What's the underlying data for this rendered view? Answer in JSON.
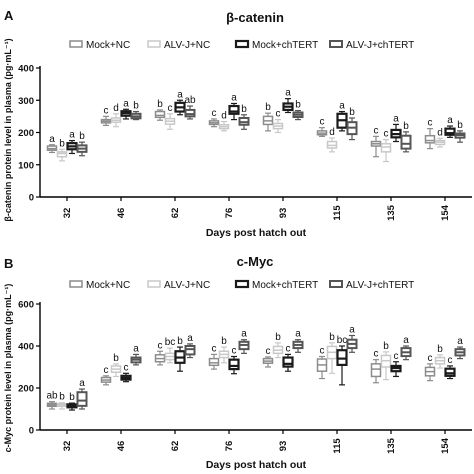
{
  "chart_data": [
    {
      "panel_label": "A",
      "type": "box",
      "title": "β-catenin",
      "xlabel": "Days post hatch out",
      "ylabel": "β-catenin protein level in plasma (pg·mL⁻¹)",
      "ylim": [
        0,
        400
      ],
      "yticks": [
        0,
        100,
        200,
        300,
        400
      ],
      "categories": [
        "32",
        "46",
        "62",
        "76",
        "93",
        "115",
        "135",
        "154"
      ],
      "legend": [
        "Mock+NC",
        "ALV-J+NC",
        "Mock+chTERT",
        "ALV-J+chTERT"
      ],
      "series": [
        {
          "name": "Mock+NC",
          "color": "#8c8c8c",
          "stroke_width": 1.5,
          "boxes": [
            {
              "min": 138,
              "q1": 145,
              "median": 150,
              "q3": 158,
              "max": 162
            },
            {
              "min": 222,
              "q1": 230,
              "median": 235,
              "q3": 240,
              "max": 250
            },
            {
              "min": 238,
              "q1": 247,
              "median": 253,
              "q3": 265,
              "max": 270
            },
            {
              "min": 218,
              "q1": 225,
              "median": 230,
              "q3": 236,
              "max": 242
            },
            {
              "min": 205,
              "q1": 225,
              "median": 236,
              "q3": 250,
              "max": 260
            },
            {
              "min": 188,
              "q1": 193,
              "median": 198,
              "q3": 205,
              "max": 215
            },
            {
              "min": 125,
              "q1": 158,
              "median": 165,
              "q3": 172,
              "max": 188
            },
            {
              "min": 150,
              "q1": 168,
              "median": 175,
              "q3": 190,
              "max": 212
            }
          ],
          "labels": [
            "a",
            "c",
            "b",
            "c",
            "b",
            "c",
            "c",
            "c"
          ]
        },
        {
          "name": "ALV-J+NC",
          "color": "#c8c8c8",
          "stroke_width": 1.5,
          "boxes": [
            {
              "min": 112,
              "q1": 125,
              "median": 135,
              "q3": 140,
              "max": 148
            },
            {
              "min": 218,
              "q1": 232,
              "median": 238,
              "q3": 245,
              "max": 258
            },
            {
              "min": 210,
              "q1": 226,
              "median": 235,
              "q3": 243,
              "max": 258
            },
            {
              "min": 205,
              "q1": 212,
              "median": 218,
              "q3": 224,
              "max": 234
            },
            {
              "min": 200,
              "q1": 212,
              "median": 220,
              "q3": 228,
              "max": 240
            },
            {
              "min": 140,
              "q1": 152,
              "median": 160,
              "q3": 172,
              "max": 183
            },
            {
              "min": 110,
              "q1": 140,
              "median": 155,
              "q3": 165,
              "max": 178
            },
            {
              "min": 155,
              "q1": 163,
              "median": 170,
              "q3": 175,
              "max": 182
            }
          ],
          "labels": [
            "b",
            "d",
            "c",
            "d",
            "c",
            "d",
            "c",
            "d"
          ]
        },
        {
          "name": "Mock+chTERT",
          "color": "#1a1a1a",
          "stroke_width": 2.2,
          "boxes": [
            {
              "min": 135,
              "q1": 148,
              "median": 157,
              "q3": 167,
              "max": 175
            },
            {
              "min": 242,
              "q1": 252,
              "median": 260,
              "q3": 266,
              "max": 272
            },
            {
              "min": 255,
              "q1": 265,
              "median": 278,
              "q3": 292,
              "max": 300
            },
            {
              "min": 240,
              "q1": 258,
              "median": 265,
              "q3": 282,
              "max": 290
            },
            {
              "min": 262,
              "q1": 270,
              "median": 280,
              "q3": 290,
              "max": 305
            },
            {
              "min": 205,
              "q1": 215,
              "median": 238,
              "q3": 258,
              "max": 265
            },
            {
              "min": 172,
              "q1": 185,
              "median": 195,
              "q3": 208,
              "max": 225
            },
            {
              "min": 185,
              "q1": 193,
              "median": 198,
              "q3": 212,
              "max": 220
            }
          ],
          "labels": [
            "a",
            "a",
            "a",
            "a",
            "a",
            "a",
            "a",
            "a"
          ]
        },
        {
          "name": "ALV-J+chTERT",
          "color": "#555555",
          "stroke_width": 2.0,
          "boxes": [
            {
              "min": 128,
              "q1": 140,
              "median": 150,
              "q3": 160,
              "max": 170
            },
            {
              "min": 240,
              "q1": 244,
              "median": 250,
              "q3": 258,
              "max": 265
            },
            {
              "min": 242,
              "q1": 250,
              "median": 257,
              "q3": 270,
              "max": 282
            },
            {
              "min": 210,
              "q1": 224,
              "median": 232,
              "q3": 245,
              "max": 255
            },
            {
              "min": 240,
              "q1": 248,
              "median": 255,
              "q3": 262,
              "max": 268
            },
            {
              "min": 178,
              "q1": 195,
              "median": 215,
              "q3": 232,
              "max": 245
            },
            {
              "min": 140,
              "q1": 150,
              "median": 165,
              "q3": 190,
              "max": 202
            },
            {
              "min": 170,
              "q1": 184,
              "median": 192,
              "q3": 197,
              "max": 205
            }
          ],
          "labels": [
            "b",
            "b",
            "ab",
            "b",
            "b",
            "b",
            "b",
            "b"
          ]
        }
      ]
    },
    {
      "panel_label": "B",
      "type": "box",
      "title": "c-Myc",
      "xlabel": "Days post hatch out",
      "ylabel": "c-Myc protein level in plasma (pg·mL⁻¹)",
      "ylim": [
        0,
        600
      ],
      "yticks": [
        0,
        200,
        400,
        600
      ],
      "categories": [
        "32",
        "46",
        "62",
        "76",
        "93",
        "115",
        "135",
        "154"
      ],
      "legend": [
        "Mock+NC",
        "ALV-J+NC",
        "Mock+chTERT",
        "ALV-J+chTERT"
      ],
      "series": [
        {
          "name": "Mock+NC",
          "color": "#8c8c8c",
          "stroke_width": 1.5,
          "boxes": [
            {
              "min": 100,
              "q1": 113,
              "median": 120,
              "q3": 127,
              "max": 135
            },
            {
              "min": 215,
              "q1": 228,
              "median": 238,
              "q3": 250,
              "max": 258
            },
            {
              "min": 310,
              "q1": 325,
              "median": 340,
              "q3": 358,
              "max": 375
            },
            {
              "min": 290,
              "q1": 308,
              "median": 320,
              "q3": 340,
              "max": 360
            },
            {
              "min": 300,
              "q1": 318,
              "median": 328,
              "q3": 340,
              "max": 348
            },
            {
              "min": 245,
              "q1": 280,
              "median": 310,
              "q3": 338,
              "max": 350
            },
            {
              "min": 225,
              "q1": 255,
              "median": 290,
              "q3": 315,
              "max": 335
            },
            {
              "min": 235,
              "q1": 258,
              "median": 278,
              "q3": 298,
              "max": 315
            }
          ],
          "labels": [
            "ab",
            "c",
            "c",
            "c",
            "c",
            "c",
            "c",
            "c"
          ]
        },
        {
          "name": "ALV-J+NC",
          "color": "#c8c8c8",
          "stroke_width": 1.5,
          "boxes": [
            {
              "min": 100,
              "q1": 113,
              "median": 120,
              "q3": 125,
              "max": 130
            },
            {
              "min": 255,
              "q1": 275,
              "median": 290,
              "q3": 305,
              "max": 315
            },
            {
              "min": 320,
              "q1": 335,
              "median": 350,
              "q3": 365,
              "max": 390
            },
            {
              "min": 320,
              "q1": 345,
              "median": 360,
              "q3": 375,
              "max": 395
            },
            {
              "min": 345,
              "q1": 365,
              "median": 380,
              "q3": 398,
              "max": 415
            },
            {
              "min": 270,
              "q1": 340,
              "median": 370,
              "q3": 398,
              "max": 415
            },
            {
              "min": 240,
              "q1": 300,
              "median": 330,
              "q3": 355,
              "max": 372
            },
            {
              "min": 295,
              "q1": 315,
              "median": 330,
              "q3": 345,
              "max": 358
            }
          ],
          "labels": [
            "b",
            "b",
            "bc",
            "b",
            "b",
            "b",
            "b",
            "b"
          ]
        },
        {
          "name": "Mock+chTERT",
          "color": "#1a1a1a",
          "stroke_width": 2.2,
          "boxes": [
            {
              "min": 95,
              "q1": 108,
              "median": 115,
              "q3": 122,
              "max": 128
            },
            {
              "min": 230,
              "q1": 240,
              "median": 248,
              "q3": 258,
              "max": 270
            },
            {
              "min": 280,
              "q1": 320,
              "median": 345,
              "q3": 375,
              "max": 395
            },
            {
              "min": 268,
              "q1": 290,
              "median": 305,
              "q3": 335,
              "max": 350
            },
            {
              "min": 280,
              "q1": 302,
              "median": 315,
              "q3": 345,
              "max": 360
            },
            {
              "min": 215,
              "q1": 310,
              "median": 340,
              "q3": 380,
              "max": 400
            },
            {
              "min": 255,
              "q1": 280,
              "median": 295,
              "q3": 305,
              "max": 325
            },
            {
              "min": 245,
              "q1": 258,
              "median": 270,
              "q3": 292,
              "max": 305
            }
          ],
          "labels": [
            "b",
            "c",
            "b",
            "c",
            "c",
            "bc",
            "c",
            "c"
          ]
        },
        {
          "name": "ALV-J+chTERT",
          "color": "#555555",
          "stroke_width": 2.0,
          "boxes": [
            {
              "min": 100,
              "q1": 115,
              "median": 140,
              "q3": 180,
              "max": 195
            },
            {
              "min": 310,
              "q1": 322,
              "median": 335,
              "q3": 345,
              "max": 360
            },
            {
              "min": 345,
              "q1": 360,
              "median": 385,
              "q3": 400,
              "max": 410
            },
            {
              "min": 365,
              "q1": 385,
              "median": 405,
              "q3": 420,
              "max": 430
            },
            {
              "min": 370,
              "q1": 390,
              "median": 405,
              "q3": 420,
              "max": 430
            },
            {
              "min": 370,
              "q1": 390,
              "median": 410,
              "q3": 430,
              "max": 450
            },
            {
              "min": 335,
              "q1": 352,
              "median": 370,
              "q3": 390,
              "max": 400
            },
            {
              "min": 340,
              "q1": 355,
              "median": 370,
              "q3": 385,
              "max": 395
            }
          ],
          "labels": [
            "a",
            "a",
            "a",
            "a",
            "a",
            "a",
            "a",
            "a"
          ]
        }
      ]
    }
  ]
}
